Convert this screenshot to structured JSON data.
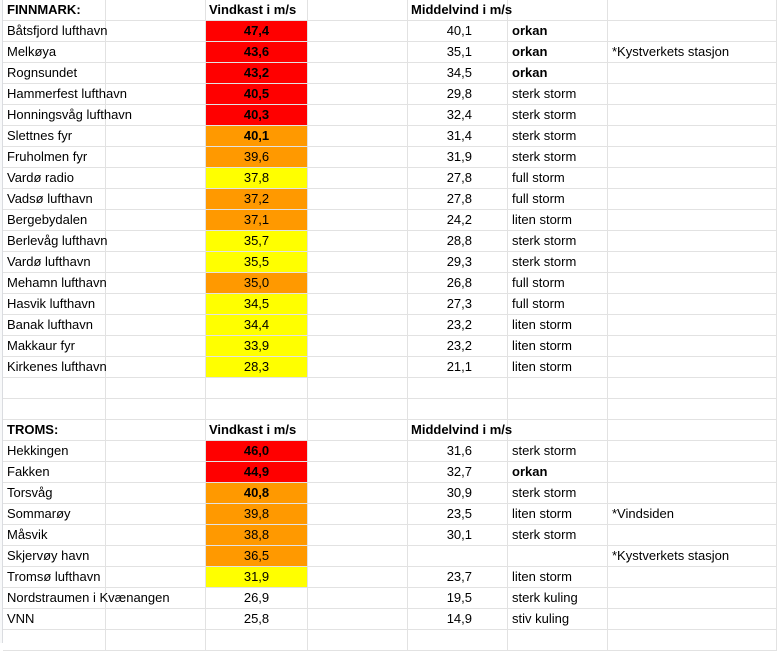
{
  "colors": {
    "red": "#ff0000",
    "orange": "#ff9900",
    "yellow": "#ffff00"
  },
  "sections": [
    {
      "region": "FINNMARK:",
      "gust_header": "Vindkast i m/s",
      "mean_header": "Middelvind i m/s",
      "rows": [
        {
          "station": "Båtsfjord lufthavn",
          "gust": "47,4",
          "color": "red",
          "bold_gust": true,
          "mean": "40,1",
          "category": "orkan",
          "bold_cat": true,
          "note": ""
        },
        {
          "station": "Melkøya",
          "gust": "43,6",
          "color": "red",
          "bold_gust": true,
          "mean": "35,1",
          "category": "orkan",
          "bold_cat": true,
          "note": "*Kystverkets stasjon"
        },
        {
          "station": "Rognsundet",
          "gust": "43,2",
          "color": "red",
          "bold_gust": true,
          "mean": "34,5",
          "category": "orkan",
          "bold_cat": true,
          "note": ""
        },
        {
          "station": "Hammerfest lufthavn",
          "gust": "40,5",
          "color": "red",
          "bold_gust": true,
          "mean": "29,8",
          "category": "sterk storm",
          "bold_cat": false,
          "note": ""
        },
        {
          "station": "Honningsvåg lufthavn",
          "gust": "40,3",
          "color": "red",
          "bold_gust": true,
          "mean": "32,4",
          "category": "sterk storm",
          "bold_cat": false,
          "note": ""
        },
        {
          "station": "Slettnes fyr",
          "gust": "40,1",
          "color": "orange",
          "bold_gust": true,
          "mean": "31,4",
          "category": "sterk storm",
          "bold_cat": false,
          "note": ""
        },
        {
          "station": "Fruholmen fyr",
          "gust": "39,6",
          "color": "orange",
          "bold_gust": false,
          "mean": "31,9",
          "category": "sterk storm",
          "bold_cat": false,
          "note": ""
        },
        {
          "station": "Vardø radio",
          "gust": "37,8",
          "color": "yellow",
          "bold_gust": false,
          "mean": "27,8",
          "category": "full storm",
          "bold_cat": false,
          "note": ""
        },
        {
          "station": "Vadsø lufthavn",
          "gust": "37,2",
          "color": "orange",
          "bold_gust": false,
          "mean": "27,8",
          "category": "full storm",
          "bold_cat": false,
          "note": ""
        },
        {
          "station": "Bergebydalen",
          "gust": "37,1",
          "color": "orange",
          "bold_gust": false,
          "mean": "24,2",
          "category": "liten storm",
          "bold_cat": false,
          "note": ""
        },
        {
          "station": "Berlevåg lufthavn",
          "gust": "35,7",
          "color": "yellow",
          "bold_gust": false,
          "mean": "28,8",
          "category": "sterk storm",
          "bold_cat": false,
          "note": ""
        },
        {
          "station": "Vardø lufthavn",
          "gust": "35,5",
          "color": "yellow",
          "bold_gust": false,
          "mean": "29,3",
          "category": "sterk storm",
          "bold_cat": false,
          "note": ""
        },
        {
          "station": "Mehamn lufthavn",
          "gust": "35,0",
          "color": "orange",
          "bold_gust": false,
          "mean": "26,8",
          "category": "full storm",
          "bold_cat": false,
          "note": ""
        },
        {
          "station": "Hasvik lufthavn",
          "gust": "34,5",
          "color": "yellow",
          "bold_gust": false,
          "mean": "27,3",
          "category": "full storm",
          "bold_cat": false,
          "note": ""
        },
        {
          "station": "Banak lufthavn",
          "gust": "34,4",
          "color": "yellow",
          "bold_gust": false,
          "mean": "23,2",
          "category": "liten storm",
          "bold_cat": false,
          "note": ""
        },
        {
          "station": "Makkaur fyr",
          "gust": "33,9",
          "color": "yellow",
          "bold_gust": false,
          "mean": "23,2",
          "category": "liten storm",
          "bold_cat": false,
          "note": ""
        },
        {
          "station": "Kirkenes lufthavn",
          "gust": "28,3",
          "color": "yellow",
          "bold_gust": false,
          "mean": "21,1",
          "category": "liten storm",
          "bold_cat": false,
          "note": ""
        }
      ]
    },
    {
      "region": "TROMS:",
      "gust_header": "Vindkast i m/s",
      "mean_header": "Middelvind i m/s",
      "rows": [
        {
          "station": "Hekkingen",
          "gust": "46,0",
          "color": "red",
          "bold_gust": true,
          "mean": "31,6",
          "category": "sterk storm",
          "bold_cat": false,
          "note": ""
        },
        {
          "station": "Fakken",
          "gust": "44,9",
          "color": "red",
          "bold_gust": true,
          "mean": "32,7",
          "category": "orkan",
          "bold_cat": true,
          "note": ""
        },
        {
          "station": "Torsvåg",
          "gust": "40,8",
          "color": "orange",
          "bold_gust": true,
          "mean": "30,9",
          "category": "sterk storm",
          "bold_cat": false,
          "note": ""
        },
        {
          "station": "Sommarøy",
          "gust": "39,8",
          "color": "orange",
          "bold_gust": false,
          "mean": "23,5",
          "category": "liten storm",
          "bold_cat": false,
          "note": "*Vindsiden"
        },
        {
          "station": "Måsvik",
          "gust": "38,8",
          "color": "orange",
          "bold_gust": false,
          "mean": "30,1",
          "category": "sterk storm",
          "bold_cat": false,
          "note": ""
        },
        {
          "station": "Skjervøy havn",
          "gust": "36,5",
          "color": "orange",
          "bold_gust": false,
          "mean": "",
          "category": "",
          "bold_cat": false,
          "note": "*Kystverkets stasjon"
        },
        {
          "station": "Tromsø lufthavn",
          "gust": "31,9",
          "color": "yellow",
          "bold_gust": false,
          "mean": "23,7",
          "category": "liten storm",
          "bold_cat": false,
          "note": ""
        },
        {
          "station": "Nordstraumen i Kvænangen",
          "gust": "26,9",
          "color": "",
          "bold_gust": false,
          "mean": "19,5",
          "category": "sterk kuling",
          "bold_cat": false,
          "note": ""
        },
        {
          "station": "VNN",
          "gust": "25,8",
          "color": "",
          "bold_gust": false,
          "mean": "14,9",
          "category": "stiv kuling",
          "bold_cat": false,
          "note": ""
        }
      ]
    }
  ]
}
